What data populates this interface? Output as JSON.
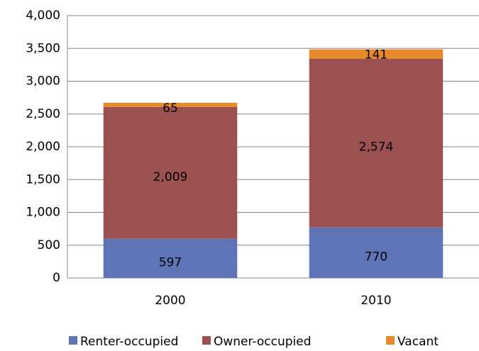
{
  "chart_data": {
    "type": "stacked_bar",
    "categories": [
      "2000",
      "2010"
    ],
    "series": [
      {
        "name": "Renter-occupied",
        "color": "#5f74b7",
        "values": [
          597,
          770
        ]
      },
      {
        "name": "Owner-occupied",
        "color": "#9c5151",
        "values": [
          2009,
          2574
        ],
        "value_labels": [
          "2,009",
          "2,574"
        ]
      },
      {
        "name": "Vacant",
        "color": "#e8892c",
        "values": [
          65,
          141
        ]
      }
    ],
    "ylim": [
      0,
      4000
    ],
    "yticks": [
      0,
      500,
      {
        "value": 1000,
        "label": "1,000"
      },
      {
        "value": 1500,
        "label": "1,500"
      },
      {
        "value": 2000,
        "label": "2,000"
      },
      {
        "value": 2500,
        "label": "2,500"
      },
      {
        "value": 3000,
        "label": "3,000"
      },
      {
        "value": 3500,
        "label": "3,500"
      },
      {
        "value": 4000,
        "label": "4,000"
      }
    ],
    "grid": true,
    "legend": "bottom"
  }
}
